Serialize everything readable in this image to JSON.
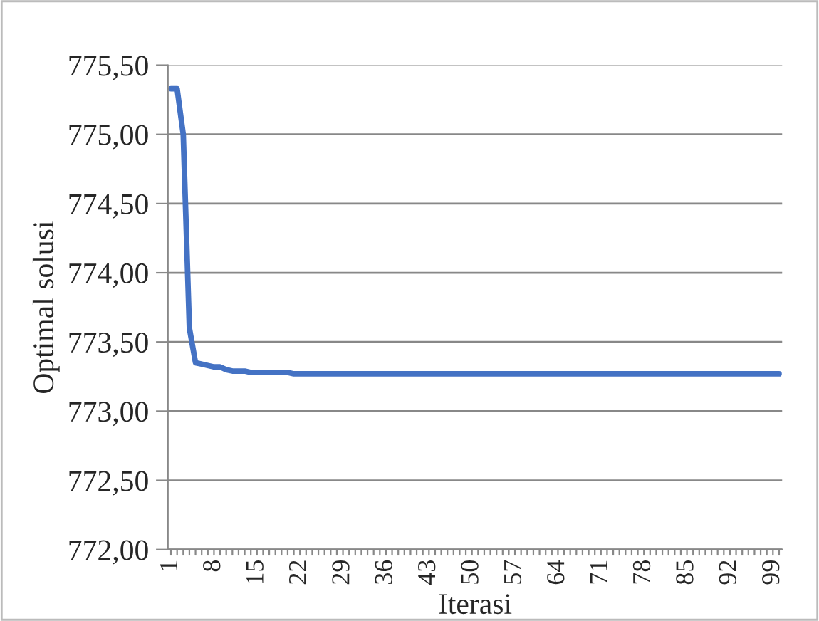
{
  "chart_data": {
    "type": "line",
    "xlabel": "Iterasi",
    "ylabel": "Optimal solusi",
    "categories": [
      "1",
      null,
      null,
      null,
      null,
      null,
      null,
      "8",
      null,
      null,
      null,
      null,
      null,
      null,
      "15",
      null,
      null,
      null,
      null,
      null,
      null,
      "22",
      null,
      null,
      null,
      null,
      null,
      null,
      "29",
      null,
      null,
      null,
      null,
      null,
      null,
      "36",
      null,
      null,
      null,
      null,
      null,
      null,
      "43",
      null,
      null,
      null,
      null,
      null,
      null,
      "50",
      null,
      null,
      null,
      null,
      null,
      null,
      "57",
      null,
      null,
      null,
      null,
      null,
      null,
      "64",
      null,
      null,
      null,
      null,
      null,
      null,
      "71",
      null,
      null,
      null,
      null,
      null,
      null,
      "78",
      null,
      null,
      null,
      null,
      null,
      null,
      "85",
      null,
      null,
      null,
      null,
      null,
      null,
      "92",
      null,
      null,
      null,
      null,
      null,
      null,
      "99",
      null
    ],
    "series": [
      {
        "color": "#4472c4",
        "values": [
          775.33,
          775.33,
          775.0,
          773.6,
          773.35,
          773.34,
          773.33,
          773.32,
          773.32,
          773.3,
          773.29,
          773.29,
          773.29,
          773.28,
          773.28,
          773.28,
          773.28,
          773.28,
          773.28,
          773.28,
          773.27,
          773.27,
          773.27,
          773.27,
          773.27,
          773.27,
          773.27,
          773.27,
          773.27,
          773.27,
          773.27,
          773.27,
          773.27,
          773.27,
          773.27,
          773.27,
          773.27,
          773.27,
          773.27,
          773.27,
          773.27,
          773.27,
          773.27,
          773.27,
          773.27,
          773.27,
          773.27,
          773.27,
          773.27,
          773.27,
          773.27,
          773.27,
          773.27,
          773.27,
          773.27,
          773.27,
          773.27,
          773.27,
          773.27,
          773.27,
          773.27,
          773.27,
          773.27,
          773.27,
          773.27,
          773.27,
          773.27,
          773.27,
          773.27,
          773.27,
          773.27,
          773.27,
          773.27,
          773.27,
          773.27,
          773.27,
          773.27,
          773.27,
          773.27,
          773.27,
          773.27,
          773.27,
          773.27,
          773.27,
          773.27,
          773.27,
          773.27,
          773.27,
          773.27,
          773.27,
          773.27,
          773.27,
          773.27,
          773.27,
          773.27,
          773.27,
          773.27,
          773.27,
          773.27,
          773.27
        ]
      }
    ],
    "ylim": [
      772.0,
      775.5
    ],
    "yticks": [
      {
        "value": 772.0,
        "label": "772,00"
      },
      {
        "value": 772.5,
        "label": "772,50"
      },
      {
        "value": 773.0,
        "label": "773,00"
      },
      {
        "value": 773.5,
        "label": "773,50"
      },
      {
        "value": 774.0,
        "label": "774,00"
      },
      {
        "value": 774.5,
        "label": "774,50"
      },
      {
        "value": 775.0,
        "label": "775,00"
      },
      {
        "value": 775.5,
        "label": "775,50"
      }
    ],
    "grid": "y",
    "legend": false,
    "marker": "none",
    "line_style": "solid"
  }
}
